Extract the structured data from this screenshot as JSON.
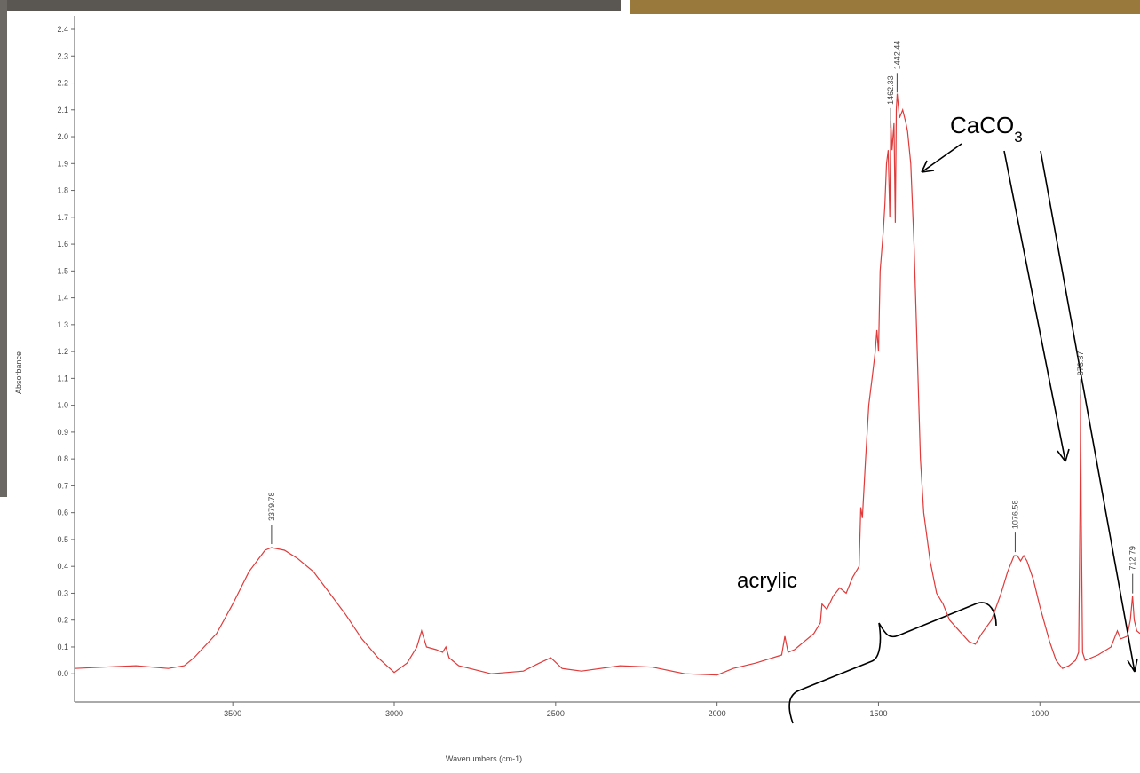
{
  "chart_data": {
    "type": "line",
    "x_label": "Wavenumbers (cm-1)",
    "y_label": "Absorbance",
    "xlim": [
      3990,
      690
    ],
    "ylim": [
      -0.105,
      2.4
    ],
    "xticks": [
      3500,
      3000,
      2500,
      2000,
      1500,
      1000
    ],
    "yticks": [
      {
        "value": 0,
        "label": "0.0"
      },
      0.1,
      0.2,
      0.3,
      0.4,
      0.5,
      0.6,
      0.7,
      0.8,
      0.9,
      {
        "value": 1,
        "label": "1.0"
      },
      1.1,
      1.2,
      1.3,
      1.4,
      1.5,
      1.6,
      1.7,
      1.8,
      1.9,
      {
        "value": 2,
        "label": "2.0"
      },
      2.1,
      2.2,
      2.3,
      2.4
    ],
    "x": [
      3990,
      3900,
      3800,
      3700,
      3650,
      3620,
      3550,
      3500,
      3450,
      3400,
      3380,
      3340,
      3300,
      3250,
      3200,
      3150,
      3100,
      3050,
      3000,
      2960,
      2930,
      2915,
      2900,
      2870,
      2850,
      2840,
      2830,
      2800,
      2700,
      2600,
      2550,
      2515,
      2480,
      2420,
      2300,
      2200,
      2100,
      2000,
      1950,
      1880,
      1800,
      1790,
      1780,
      1760,
      1700,
      1680,
      1675,
      1660,
      1640,
      1620,
      1600,
      1580,
      1560,
      1555,
      1550,
      1540,
      1530,
      1520,
      1510,
      1505,
      1500,
      1495,
      1485,
      1480,
      1475,
      1470,
      1465,
      1462,
      1458,
      1452,
      1448,
      1445,
      1442,
      1435,
      1425,
      1415,
      1410,
      1400,
      1390,
      1380,
      1370,
      1360,
      1340,
      1320,
      1300,
      1280,
      1250,
      1220,
      1200,
      1180,
      1150,
      1120,
      1100,
      1080,
      1070,
      1060,
      1050,
      1040,
      1020,
      1000,
      970,
      950,
      930,
      910,
      890,
      880,
      876,
      874,
      872,
      868,
      860,
      820,
      780,
      760,
      750,
      730,
      720,
      713,
      708,
      700,
      690
    ],
    "series": [
      {
        "color": "#e03a3a",
        "values": [
          0.02,
          0.025,
          0.03,
          0.02,
          0.03,
          0.06,
          0.15,
          0.26,
          0.38,
          0.46,
          0.47,
          0.46,
          0.43,
          0.38,
          0.3,
          0.22,
          0.13,
          0.06,
          0.005,
          0.04,
          0.1,
          0.16,
          0.1,
          0.09,
          0.08,
          0.1,
          0.06,
          0.03,
          0.0,
          0.01,
          0.04,
          0.06,
          0.02,
          0.01,
          0.03,
          0.025,
          0.0,
          -0.005,
          0.02,
          0.04,
          0.07,
          0.14,
          0.08,
          0.09,
          0.15,
          0.19,
          0.26,
          0.24,
          0.29,
          0.32,
          0.3,
          0.36,
          0.4,
          0.62,
          0.58,
          0.8,
          1.0,
          1.1,
          1.2,
          1.28,
          1.2,
          1.5,
          1.65,
          1.75,
          1.9,
          1.95,
          1.7,
          2.06,
          1.95,
          2.05,
          1.68,
          2.1,
          2.16,
          2.07,
          2.1,
          2.05,
          2.02,
          1.9,
          1.6,
          1.2,
          0.8,
          0.6,
          0.42,
          0.3,
          0.26,
          0.2,
          0.16,
          0.12,
          0.11,
          0.15,
          0.2,
          0.3,
          0.38,
          0.44,
          0.44,
          0.42,
          0.44,
          0.42,
          0.35,
          0.25,
          0.12,
          0.05,
          0.02,
          0.03,
          0.05,
          0.08,
          0.6,
          1.04,
          0.6,
          0.08,
          0.05,
          0.07,
          0.1,
          0.16,
          0.13,
          0.14,
          0.2,
          0.29,
          0.2,
          0.16,
          0.15
        ]
      }
    ],
    "peak_labels": [
      3379.78,
      1462.33,
      1442.44,
      1076.58,
      873.87,
      712.79
    ],
    "annotations": {
      "caco3": {
        "base": "CaCO",
        "subscript": "3"
      },
      "acrylic": "acrylic"
    }
  }
}
